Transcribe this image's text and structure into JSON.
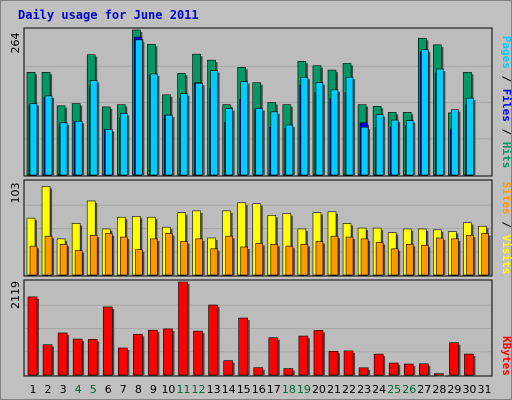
{
  "chart_data": {
    "type": "bar",
    "title": "Daily usage for June 2011",
    "categories": [
      "1",
      "2",
      "3",
      "4",
      "5",
      "6",
      "7",
      "8",
      "9",
      "10",
      "11",
      "12",
      "13",
      "14",
      "15",
      "16",
      "17",
      "18",
      "19",
      "20",
      "21",
      "22",
      "23",
      "24",
      "25",
      "26",
      "27",
      "28",
      "29",
      "30",
      "31"
    ],
    "weekend_days": [
      "4",
      "5",
      "11",
      "12",
      "18",
      "19",
      "25",
      "26"
    ],
    "panels": [
      {
        "name": "hits-files-pages",
        "ymax": 264,
        "ymax_label": "264",
        "legend_words": [
          "Pages",
          "Files",
          "Hits"
        ],
        "series": [
          {
            "name": "Hits",
            "color": "#009966",
            "values": [
              187,
              187,
              126,
              130,
              219,
              124,
              128,
              264,
              238,
              146,
              185,
              220,
              209,
              128,
              196,
              168,
              132,
              128,
              207,
              199,
              191,
              203,
              128,
              125,
              114,
              114,
              249,
              237,
              113,
              187,
              null
            ]
          },
          {
            "name": "Files",
            "color": "#0000ff",
            "values": [
              128,
              141,
              92,
              97,
              162,
              83,
              104,
              251,
              182,
              109,
              140,
              168,
              158,
              96,
              138,
              119,
              87,
              85,
              164,
              150,
              139,
              150,
              95,
              87,
              87,
              90,
              224,
              186,
              84,
              128,
              null
            ]
          },
          {
            "name": "Pages",
            "color": "#00ccff",
            "values": [
              130,
              144,
              95,
              98,
              172,
              83,
              112,
              246,
              184,
              109,
              148,
              167,
              190,
              121,
              170,
              121,
              115,
              91,
              178,
              168,
              155,
              178,
              87,
              110,
              100,
              99,
              228,
              193,
              119,
              140,
              null
            ]
          }
        ]
      },
      {
        "name": "visits-sites",
        "ymax": 103,
        "ymax_label": "103",
        "legend_words": [
          "Sites",
          "Visits"
        ],
        "series": [
          {
            "name": "Visits",
            "color": "#ffff00",
            "values": [
              63,
              98,
              40,
              57,
              82,
              51,
              64,
              65,
              64,
              53,
              69,
              71,
              41,
              71,
              80,
              79,
              66,
              68,
              51,
              69,
              70,
              57,
              52,
              52,
              47,
              51,
              51,
              50,
              48,
              58,
              54
            ]
          },
          {
            "name": "Sites",
            "color": "#ff9900",
            "values": [
              32,
              43,
              34,
              27,
              44,
              46,
              42,
              28,
              40,
              46,
              37,
              40,
              29,
              43,
              31,
              35,
              34,
              32,
              34,
              37,
              43,
              42,
              40,
              36,
              29,
              34,
              33,
              41,
              40,
              44,
              46
            ]
          }
        ]
      },
      {
        "name": "kbytes",
        "ymax": 2119,
        "ymax_label": "2119",
        "legend_words": [
          "KBytes"
        ],
        "series": [
          {
            "name": "KBytes",
            "color": "#ff0000",
            "values": [
              1780,
              690,
              958,
              819,
              811,
              1551,
              615,
              928,
              1021,
              1051,
              2119,
              1000,
              1594,
              327,
              1298,
              167,
              849,
              145,
              887,
              1015,
              540,
              549,
              164,
              476,
              272,
              250,
              255,
              30,
              737,
              477,
              null
            ]
          }
        ]
      }
    ],
    "colors": {
      "frame_bg": "#c0c0c0",
      "plot_bg": "#bcbcbc",
      "title": "#0000cc",
      "weekend_label": "#006633",
      "weekday_label": "#000000"
    }
  }
}
